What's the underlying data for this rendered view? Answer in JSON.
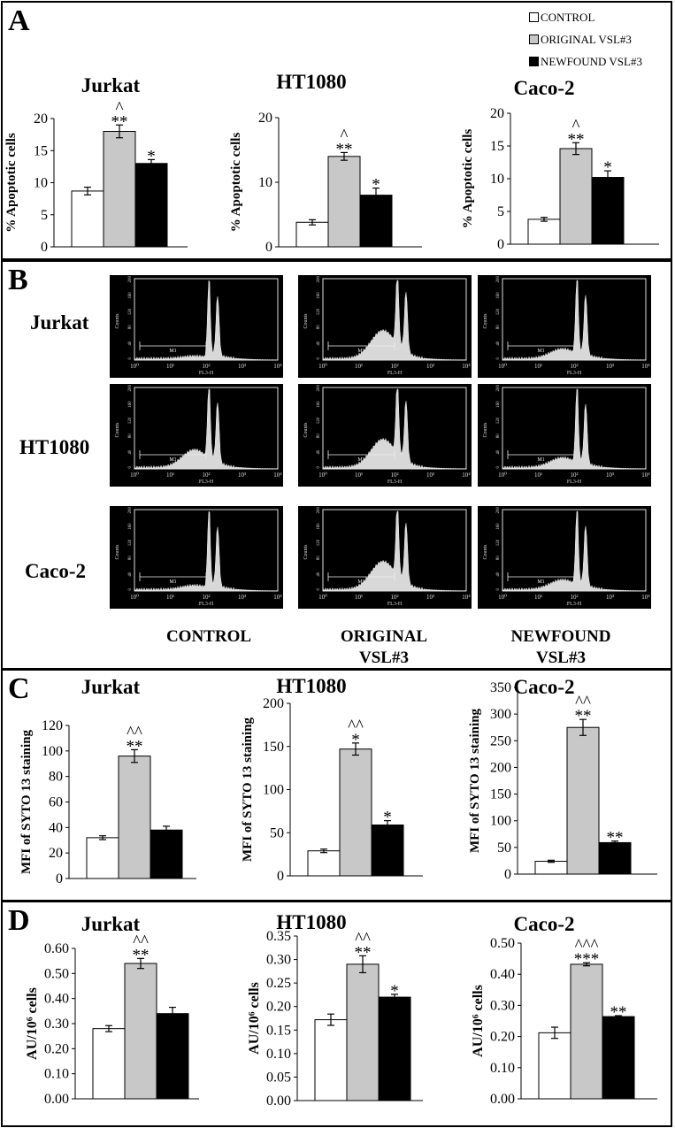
{
  "legend": [
    {
      "label": "CONTROL",
      "color": "#ffffff"
    },
    {
      "label": "ORIGINAL VSL#3",
      "color": "#c8c8c8"
    },
    {
      "label": "NEWFOUND VSL#3",
      "color": "#000000"
    }
  ],
  "panels": {
    "A": {
      "letter": "A"
    },
    "B": {
      "letter": "B"
    },
    "C": {
      "letter": "C"
    },
    "D": {
      "letter": "D"
    }
  },
  "flow": {
    "rows": [
      "Jurkat",
      "HT1080",
      "Caco-2"
    ],
    "cols": [
      "CONTROL",
      "ORIGINAL\nVSL#3",
      "NEWFOUND\nVSL#3"
    ],
    "histogram_labels": {
      "ylabel": "Counts",
      "xlabel": "FL3-H",
      "gate": "M1",
      "yticks": [
        "0",
        "40",
        "80",
        "120",
        "160",
        "200"
      ],
      "xticks": [
        "10⁰",
        "10¹",
        "10²",
        "10³",
        "10⁴"
      ]
    }
  },
  "chart_data": [
    {
      "id": "A1",
      "type": "bar",
      "title": "Jurkat",
      "ylabel": "% Apoptotic cells",
      "categories": [
        "CONTROL",
        "ORIGINAL VSL#3",
        "NEWFOUND VSL#3"
      ],
      "values": [
        8.7,
        18.0,
        13.0
      ],
      "errors": [
        0.6,
        1.0,
        0.6
      ],
      "annotations": [
        "",
        "^\n**",
        "*"
      ],
      "ylim": [
        0,
        20
      ],
      "yticks": [
        "0",
        "5",
        "10",
        "15",
        "20"
      ]
    },
    {
      "id": "A2",
      "type": "bar",
      "title": "HT1080",
      "ylabel": "% Apoptotic cells",
      "categories": [
        "CONTROL",
        "ORIGINAL VSL#3",
        "NEWFOUND VSL#3"
      ],
      "values": [
        3.8,
        14.0,
        8.0
      ],
      "errors": [
        0.4,
        0.6,
        1.1
      ],
      "annotations": [
        "",
        "^\n**",
        "*"
      ],
      "ylim": [
        0,
        20
      ],
      "yticks": [
        "0",
        "10",
        "20"
      ]
    },
    {
      "id": "A3",
      "type": "bar",
      "title": "Caco-2",
      "ylabel": "% Apoptotic cells",
      "categories": [
        "CONTROL",
        "ORIGINAL VSL#3",
        "NEWFOUND VSL#3"
      ],
      "values": [
        3.8,
        14.6,
        10.2
      ],
      "errors": [
        0.3,
        0.9,
        1.0
      ],
      "annotations": [
        "",
        "^\n**",
        "*"
      ],
      "ylim": [
        0,
        20
      ],
      "yticks": [
        "0",
        "5",
        "10",
        "15",
        "20"
      ]
    },
    {
      "id": "C1",
      "type": "bar",
      "title": "Jurkat",
      "ylabel": "MFI of SYTO 13 staining",
      "categories": [
        "CONTROL",
        "ORIGINAL VSL#3",
        "NEWFOUND VSL#3"
      ],
      "values": [
        32,
        96,
        38
      ],
      "errors": [
        1.5,
        5,
        3
      ],
      "annotations": [
        "",
        "^^\n**",
        ""
      ],
      "ylim": [
        0,
        120
      ],
      "yticks": [
        "0",
        "20",
        "40",
        "60",
        "80",
        "100",
        "120"
      ]
    },
    {
      "id": "C2",
      "type": "bar",
      "title": "HT1080",
      "ylabel": "MFI of SYTO 13 staining",
      "categories": [
        "CONTROL",
        "ORIGINAL VSL#3",
        "NEWFOUND VSL#3"
      ],
      "values": [
        29,
        147,
        59
      ],
      "errors": [
        2,
        7,
        5
      ],
      "annotations": [
        "",
        "^^\n*",
        "*"
      ],
      "ylim": [
        0,
        200
      ],
      "yticks": [
        "0",
        "50",
        "100",
        "150",
        "200"
      ]
    },
    {
      "id": "C3",
      "type": "bar",
      "title": "Caco-2",
      "ylabel": "MFI of SYTO 13 staining",
      "categories": [
        "CONTROL",
        "ORIGINAL VSL#3",
        "NEWFOUND VSL#3"
      ],
      "values": [
        24,
        275,
        59
      ],
      "errors": [
        2,
        15,
        3
      ],
      "annotations": [
        "",
        "^^\n**",
        "**"
      ],
      "ylim": [
        0,
        350
      ],
      "yticks": [
        "0",
        "50",
        "100",
        "150",
        "200",
        "250",
        "300",
        "350"
      ]
    },
    {
      "id": "D1",
      "type": "bar",
      "title": "Jurkat",
      "ylabel": "AU/10⁶ cells",
      "categories": [
        "CONTROL",
        "ORIGINAL VSL#3",
        "NEWFOUND VSL#3"
      ],
      "values": [
        0.28,
        0.54,
        0.34
      ],
      "errors": [
        0.012,
        0.02,
        0.025
      ],
      "annotations": [
        "",
        "^^\n**",
        ""
      ],
      "ylim": [
        0,
        0.6
      ],
      "yticks": [
        "0.00",
        "0.10",
        "0.20",
        "0.30",
        "0.40",
        "0.50",
        "0.60"
      ]
    },
    {
      "id": "D2",
      "type": "bar",
      "title": "HT1080",
      "ylabel": "AU/10⁶ cells",
      "categories": [
        "CONTROL",
        "ORIGINAL VSL#3",
        "NEWFOUND VSL#3"
      ],
      "values": [
        0.172,
        0.29,
        0.22
      ],
      "errors": [
        0.012,
        0.018,
        0.006
      ],
      "annotations": [
        "",
        "^^\n**",
        "*"
      ],
      "ylim": [
        0,
        0.35
      ],
      "yticks": [
        "0.00",
        "0.05",
        "0.10",
        "0.15",
        "0.20",
        "0.25",
        "0.30",
        "0.35"
      ]
    },
    {
      "id": "D3",
      "type": "bar",
      "title": "Caco-2",
      "ylabel": "AU/10⁶ cells",
      "categories": [
        "CONTROL",
        "ORIGINAL VSL#3",
        "NEWFOUND VSL#3"
      ],
      "values": [
        0.212,
        0.432,
        0.264
      ],
      "errors": [
        0.018,
        0.005,
        0.003
      ],
      "annotations": [
        "",
        "^^^\n***",
        "**"
      ],
      "ylim": [
        0,
        0.5
      ],
      "yticks": [
        "0.00",
        "0.10",
        "0.20",
        "0.30",
        "0.40",
        "0.50"
      ]
    }
  ]
}
